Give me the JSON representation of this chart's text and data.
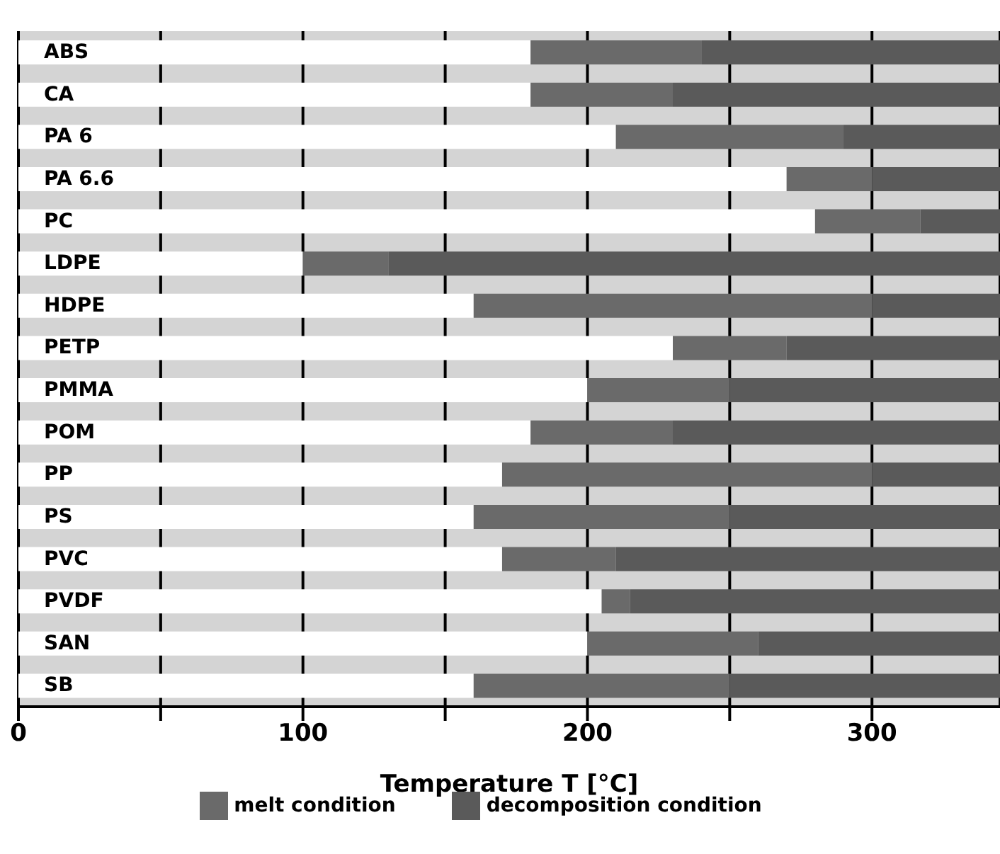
{
  "chart_data": {
    "type": "bar",
    "orientation": "horizontal",
    "stacked": true,
    "xlabel": "Temperature T [°C]",
    "categories": [
      "ABS",
      "CA",
      "PA 6",
      "PA 6.6",
      "PC",
      "LDPE",
      "HDPE",
      "PETP",
      "PMMA",
      "POM",
      "PP",
      "PS",
      "PVC",
      "PVDF",
      "SAN",
      "SB"
    ],
    "series": [
      {
        "color": "#ffffff",
        "values": [
          180,
          180,
          210,
          270,
          280,
          100,
          160,
          230,
          200,
          180,
          170,
          160,
          170,
          205,
          200,
          160
        ]
      },
      {
        "name": "melt condition",
        "color": "#6a6a6a",
        "values": [
          60,
          50,
          80,
          30,
          37,
          30,
          140,
          40,
          50,
          50,
          130,
          90,
          40,
          10,
          60,
          90
        ]
      },
      {
        "name": "decomposition condition",
        "color": "#5a5a5a",
        "values": [
          105,
          115,
          55,
          45,
          28,
          215,
          45,
          75,
          95,
          115,
          45,
          95,
          135,
          130,
          85,
          95
        ]
      }
    ],
    "xlim": [
      0,
      345
    ],
    "xticks": [
      0,
      {
        "value": 50,
        "label": null
      },
      100,
      {
        "value": 150,
        "label": null
      },
      200,
      {
        "value": 250,
        "label": null
      },
      300
    ],
    "grid": "x",
    "legend": "bottom"
  }
}
